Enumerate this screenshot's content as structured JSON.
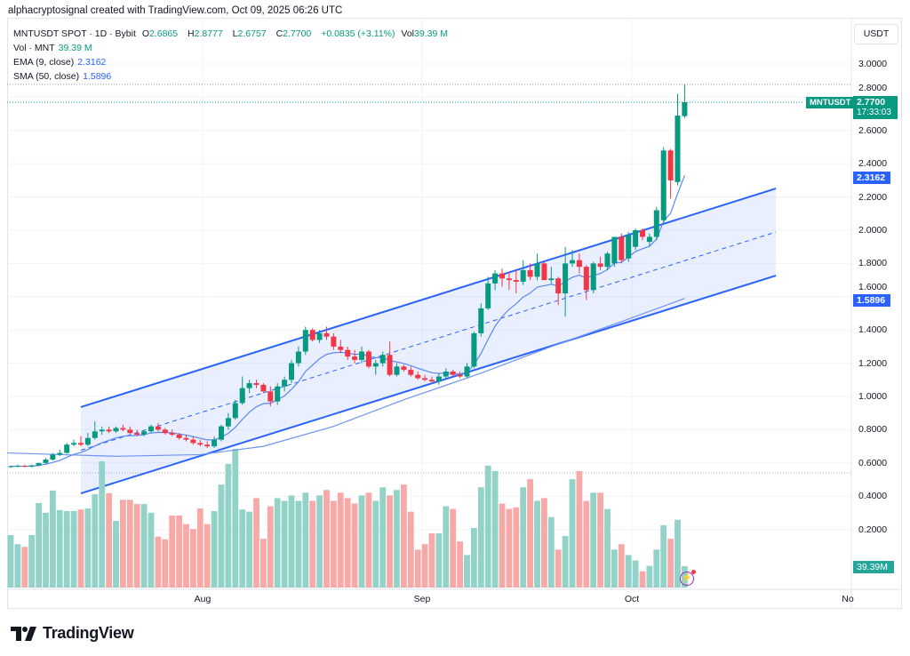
{
  "credit": "alphacryptosignal created with TradingView.com, Oct 09, 2025 06:26 UTC",
  "legend": {
    "symbol": "MNTUSDT SPOT · 1D · Bybit",
    "o_label": "O",
    "o": "2.6865",
    "h_label": "H",
    "h": "2.8777",
    "l_label": "L",
    "l": "2.6757",
    "c_label": "C",
    "c": "2.7700",
    "change": "+0.0835 (+3.11%)",
    "vol_label": "Vol",
    "vol": "39.39 M",
    "vol_ind": "Vol · MNT",
    "vol_ind_val": "39.39 M",
    "ema": "EMA (9, close)",
    "ema_val": "2.3162",
    "sma": "SMA (50, close)",
    "sma_val": "1.5896"
  },
  "price_axis": {
    "unit": "USDT",
    "ticks": [
      "3.0000",
      "2.8000",
      "2.6000",
      "2.4000",
      "2.2000",
      "2.0000",
      "1.8000",
      "1.6000",
      "1.4000",
      "1.2000",
      "1.0000",
      "0.8000",
      "0.6000",
      "0.4000",
      "0.2000"
    ]
  },
  "badges": {
    "symbol": "MNTUSDT",
    "last_price": "2.7700",
    "countdown": "17:33:03",
    "ema": "2.3162",
    "sma": "1.5896",
    "volume": "39.39M"
  },
  "time_axis": [
    "Aug",
    "Sep",
    "Oct",
    "No"
  ],
  "logo": "TradingView",
  "colors": {
    "up": "#089981",
    "down": "#f23645",
    "vol_up": "#92d2c8",
    "vol_down": "#f7a9a7",
    "channel": "#2962ff",
    "ema": "#5b87f5",
    "sma": "#6f93f0",
    "grid": "#f0f3fa"
  },
  "icons": {
    "alert": "lightning-icon",
    "logo": "tradingview-logo"
  },
  "chart_data": {
    "type": "candlestick",
    "interval": "1D",
    "first_date": "2025-07-05",
    "last_date": "2025-10-09",
    "ylim": [
      0.2,
      3.0
    ],
    "columns": [
      "open",
      "high",
      "low",
      "close",
      "volume_M"
    ],
    "candles": [
      [
        0.575,
        0.585,
        0.57,
        0.58,
        97
      ],
      [
        0.58,
        0.59,
        0.575,
        0.582,
        80
      ],
      [
        0.582,
        0.59,
        0.575,
        0.578,
        75
      ],
      [
        0.578,
        0.59,
        0.572,
        0.585,
        97
      ],
      [
        0.585,
        0.6,
        0.58,
        0.6,
        156
      ],
      [
        0.6,
        0.63,
        0.595,
        0.62,
        138
      ],
      [
        0.62,
        0.66,
        0.615,
        0.65,
        179
      ],
      [
        0.65,
        0.68,
        0.64,
        0.66,
        143
      ],
      [
        0.66,
        0.72,
        0.655,
        0.71,
        141
      ],
      [
        0.71,
        0.74,
        0.7,
        0.72,
        141
      ],
      [
        0.72,
        0.76,
        0.7,
        0.71,
        144
      ],
      [
        0.71,
        0.78,
        0.7,
        0.75,
        146
      ],
      [
        0.75,
        0.85,
        0.74,
        0.79,
        172
      ],
      [
        0.79,
        0.82,
        0.77,
        0.8,
        233
      ],
      [
        0.8,
        0.82,
        0.78,
        0.79,
        174
      ],
      [
        0.79,
        0.82,
        0.78,
        0.81,
        123
      ],
      [
        0.81,
        0.83,
        0.79,
        0.8,
        162
      ],
      [
        0.8,
        0.82,
        0.77,
        0.78,
        162
      ],
      [
        0.78,
        0.8,
        0.76,
        0.77,
        154
      ],
      [
        0.77,
        0.8,
        0.76,
        0.79,
        154
      ],
      [
        0.79,
        0.83,
        0.78,
        0.82,
        138
      ],
      [
        0.82,
        0.84,
        0.79,
        0.8,
        94
      ],
      [
        0.8,
        0.81,
        0.77,
        0.78,
        89
      ],
      [
        0.78,
        0.8,
        0.76,
        0.77,
        133
      ],
      [
        0.77,
        0.78,
        0.74,
        0.75,
        133
      ],
      [
        0.75,
        0.77,
        0.73,
        0.74,
        117
      ],
      [
        0.74,
        0.76,
        0.71,
        0.72,
        108
      ],
      [
        0.72,
        0.74,
        0.7,
        0.71,
        146
      ],
      [
        0.71,
        0.73,
        0.69,
        0.7,
        117
      ],
      [
        0.7,
        0.76,
        0.69,
        0.74,
        141
      ],
      [
        0.74,
        0.83,
        0.73,
        0.82,
        190
      ],
      [
        0.82,
        0.9,
        0.8,
        0.87,
        228
      ],
      [
        0.87,
        0.98,
        0.86,
        0.96,
        256
      ],
      [
        0.96,
        1.12,
        0.95,
        1.05,
        144
      ],
      [
        1.05,
        1.1,
        1.02,
        1.08,
        140
      ],
      [
        1.08,
        1.1,
        1.05,
        1.07,
        165
      ],
      [
        1.07,
        1.08,
        1.02,
        1.03,
        90
      ],
      [
        1.03,
        1.06,
        0.94,
        0.97,
        150
      ],
      [
        0.97,
        1.08,
        0.95,
        1.06,
        165
      ],
      [
        1.06,
        1.12,
        1.03,
        1.1,
        160
      ],
      [
        1.1,
        1.22,
        1.08,
        1.2,
        170
      ],
      [
        1.2,
        1.3,
        1.18,
        1.27,
        160
      ],
      [
        1.27,
        1.42,
        1.25,
        1.4,
        175
      ],
      [
        1.4,
        1.41,
        1.33,
        1.34,
        160
      ],
      [
        1.34,
        1.4,
        1.32,
        1.38,
        170
      ],
      [
        1.38,
        1.42,
        1.34,
        1.36,
        180
      ],
      [
        1.36,
        1.38,
        1.28,
        1.3,
        160
      ],
      [
        1.3,
        1.34,
        1.26,
        1.28,
        175
      ],
      [
        1.28,
        1.3,
        1.22,
        1.24,
        165
      ],
      [
        1.24,
        1.28,
        1.2,
        1.22,
        155
      ],
      [
        1.22,
        1.3,
        1.2,
        1.27,
        170
      ],
      [
        1.27,
        1.28,
        1.17,
        1.18,
        175
      ],
      [
        1.18,
        1.22,
        1.13,
        1.2,
        160
      ],
      [
        1.2,
        1.27,
        1.18,
        1.25,
        185
      ],
      [
        1.25,
        1.33,
        1.12,
        1.13,
        170
      ],
      [
        1.13,
        1.2,
        1.12,
        1.18,
        180
      ],
      [
        1.18,
        1.19,
        1.15,
        1.16,
        190
      ],
      [
        1.16,
        1.18,
        1.12,
        1.13,
        140
      ],
      [
        1.13,
        1.15,
        1.1,
        1.11,
        70
      ],
      [
        1.11,
        1.13,
        1.09,
        1.1,
        80
      ],
      [
        1.1,
        1.12,
        1.08,
        1.09,
        100
      ],
      [
        1.09,
        1.14,
        1.07,
        1.12,
        100
      ],
      [
        1.12,
        1.17,
        1.11,
        1.15,
        150
      ],
      [
        1.15,
        1.16,
        1.12,
        1.13,
        145
      ],
      [
        1.13,
        1.15,
        1.11,
        1.12,
        85
      ],
      [
        1.12,
        1.2,
        1.11,
        1.18,
        60
      ],
      [
        1.18,
        1.39,
        1.17,
        1.38,
        110
      ],
      [
        1.38,
        1.56,
        1.36,
        1.53,
        185
      ],
      [
        1.53,
        1.72,
        1.52,
        1.68,
        225
      ],
      [
        1.68,
        1.76,
        1.64,
        1.74,
        215
      ],
      [
        1.74,
        1.77,
        1.66,
        1.71,
        155
      ],
      [
        1.71,
        1.75,
        1.64,
        1.7,
        145
      ],
      [
        1.7,
        1.76,
        1.62,
        1.69,
        148
      ],
      [
        1.69,
        1.82,
        1.67,
        1.76,
        185
      ],
      [
        1.76,
        1.8,
        1.7,
        1.72,
        200
      ],
      [
        1.72,
        1.86,
        1.7,
        1.8,
        160
      ],
      [
        1.8,
        1.81,
        1.7,
        1.7,
        165
      ],
      [
        1.7,
        1.78,
        1.68,
        1.71,
        130
      ],
      [
        1.71,
        1.72,
        1.55,
        1.62,
        70
      ],
      [
        1.62,
        1.9,
        1.48,
        1.8,
        95
      ],
      [
        1.8,
        1.88,
        1.78,
        1.82,
        200
      ],
      [
        1.82,
        1.86,
        1.74,
        1.78,
        215
      ],
      [
        1.78,
        1.79,
        1.58,
        1.64,
        160
      ],
      [
        1.64,
        1.81,
        1.62,
        1.8,
        175
      ],
      [
        1.8,
        1.84,
        1.76,
        1.78,
        175
      ],
      [
        1.78,
        1.87,
        1.76,
        1.86,
        145
      ],
      [
        1.8,
        1.96,
        1.78,
        1.96,
        70
      ],
      [
        1.96,
        1.98,
        1.8,
        1.82,
        80
      ],
      [
        1.83,
        1.99,
        1.81,
        1.97,
        60
      ],
      [
        1.9,
        2.01,
        1.88,
        2.0,
        50
      ],
      [
        2.0,
        2.01,
        1.94,
        1.96,
        30
      ],
      [
        1.93,
        1.98,
        1.9,
        1.96,
        40
      ],
      [
        1.96,
        2.14,
        1.94,
        2.12,
        70
      ],
      [
        2.06,
        2.5,
        2.04,
        2.48,
        115
      ],
      [
        2.48,
        2.49,
        2.19,
        2.3,
        90
      ],
      [
        2.29,
        2.82,
        2.27,
        2.69,
        125
      ],
      [
        2.6865,
        2.8777,
        2.6757,
        2.77,
        39.39
      ]
    ],
    "sma50": [
      [
        "2025-07-05",
        0.66
      ],
      [
        "2025-07-20",
        0.64
      ],
      [
        "2025-08-01",
        0.65
      ],
      [
        "2025-08-10",
        0.7
      ],
      [
        "2025-08-20",
        0.82
      ],
      [
        "2025-08-30",
        0.98
      ],
      [
        "2025-09-10",
        1.14
      ],
      [
        "2025-09-20",
        1.3
      ],
      [
        "2025-09-30",
        1.45
      ],
      [
        "2025-10-09",
        1.5896
      ]
    ],
    "channel": {
      "upper": [
        [
          "2025-07-15",
          0.936
        ],
        [
          "2025-10-22",
          2.251
        ]
      ],
      "lower": [
        [
          "2025-07-15",
          0.417
        ],
        [
          "2025-10-22",
          1.727
        ]
      ]
    },
    "high_line": 2.8777,
    "last_line": 2.77
  }
}
